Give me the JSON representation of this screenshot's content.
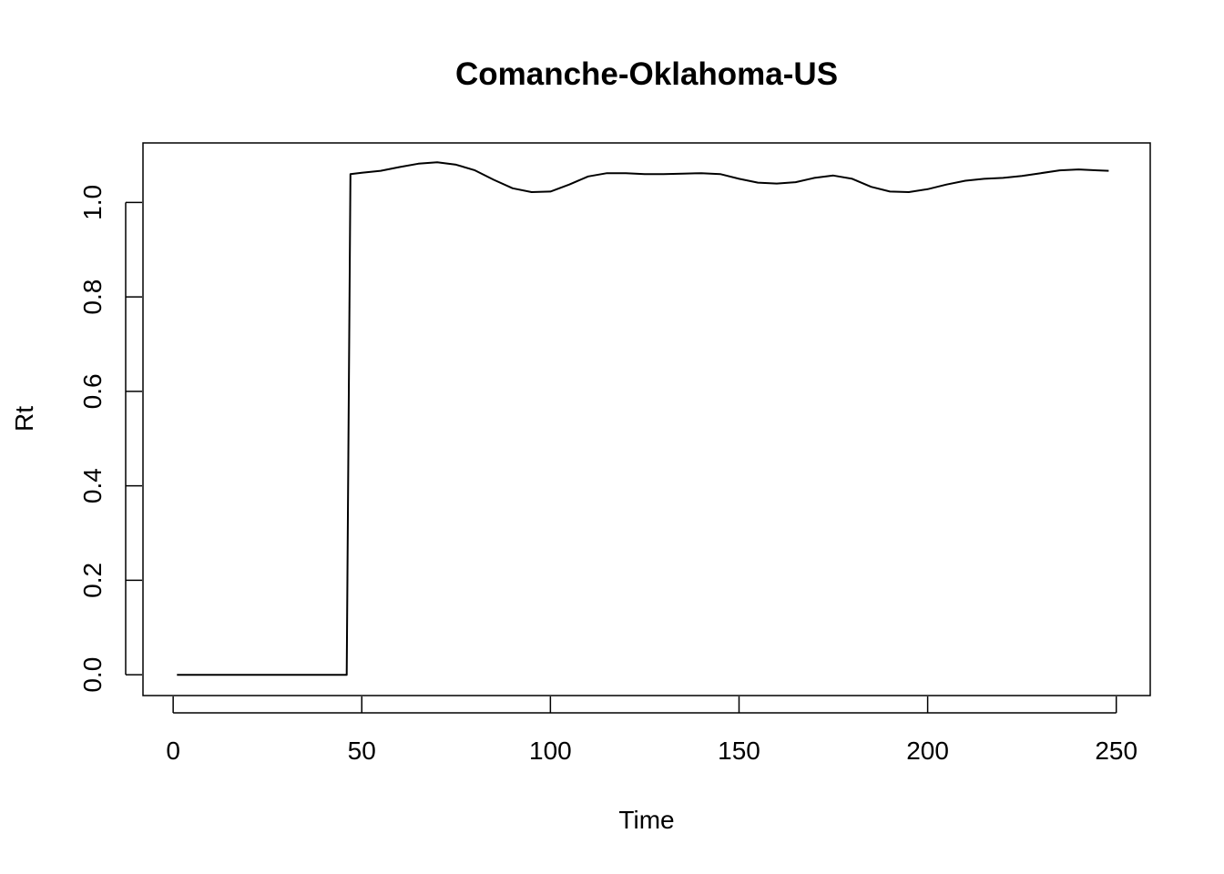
{
  "chart_data": {
    "type": "line",
    "title": "Comanche-Oklahoma-US",
    "xlabel": "Time",
    "ylabel": "Rt",
    "xlim": [
      -8,
      259
    ],
    "ylim": [
      -0.044,
      1.126
    ],
    "xticks": [
      0,
      50,
      100,
      150,
      200,
      250
    ],
    "xtick_labels": [
      "0",
      "50",
      "100",
      "150",
      "200",
      "250"
    ],
    "yticks": [
      0.0,
      0.2,
      0.4,
      0.6,
      0.8,
      1.0
    ],
    "ytick_labels": [
      "0.0",
      "0.2",
      "0.4",
      "0.6",
      "0.8",
      "1.0"
    ],
    "grid": false,
    "legend": "none",
    "colors": {
      "series": "#000000",
      "axes": "#000000",
      "background": "#ffffff"
    },
    "series": [
      {
        "x": [
          1,
          46,
          47,
          50,
          55,
          60,
          65,
          70,
          75,
          80,
          85,
          90,
          95,
          100,
          105,
          110,
          115,
          120,
          125,
          130,
          135,
          140,
          145,
          150,
          155,
          160,
          165,
          170,
          175,
          180,
          185,
          190,
          195,
          200,
          205,
          210,
          215,
          220,
          225,
          230,
          235,
          240,
          245,
          248
        ],
        "y": [
          0.0,
          0.0,
          1.06,
          1.063,
          1.067,
          1.075,
          1.082,
          1.085,
          1.08,
          1.068,
          1.048,
          1.03,
          1.022,
          1.023,
          1.038,
          1.055,
          1.062,
          1.062,
          1.06,
          1.06,
          1.061,
          1.062,
          1.06,
          1.05,
          1.042,
          1.04,
          1.043,
          1.052,
          1.057,
          1.05,
          1.033,
          1.023,
          1.022,
          1.028,
          1.038,
          1.046,
          1.05,
          1.052,
          1.056,
          1.062,
          1.068,
          1.07,
          1.068,
          1.067
        ]
      }
    ]
  }
}
